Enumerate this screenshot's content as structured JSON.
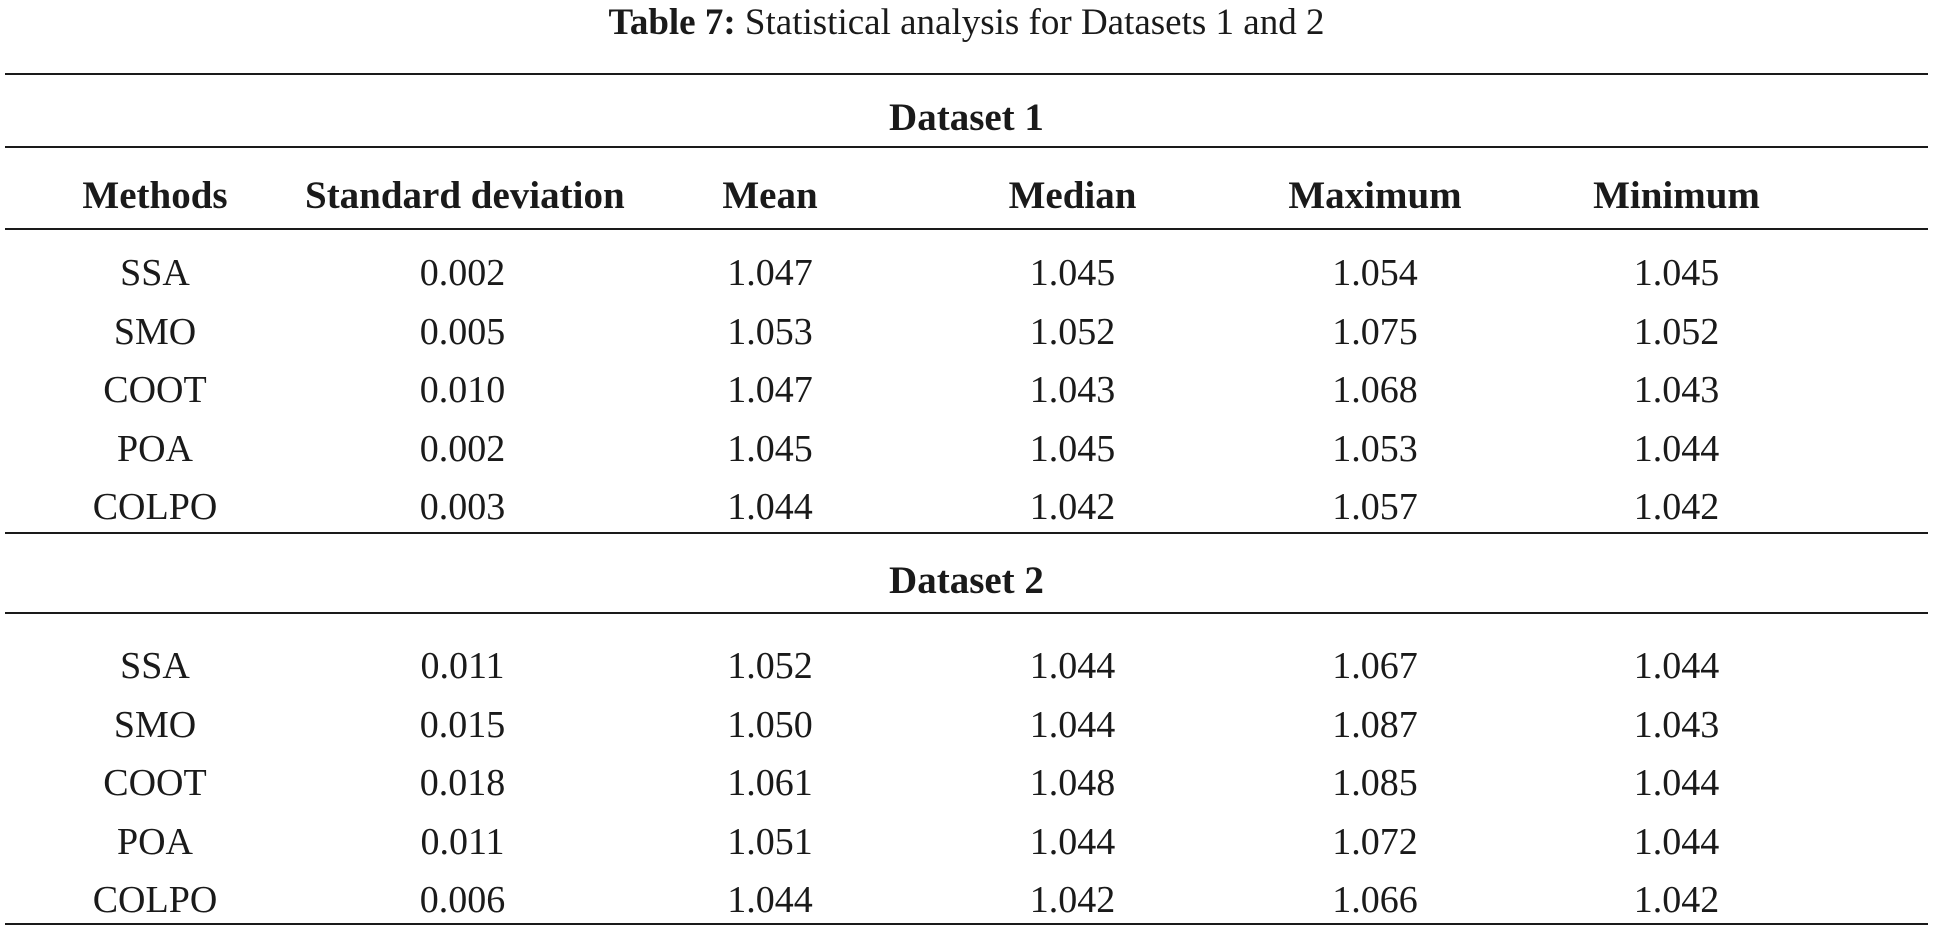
{
  "caption": {
    "label": "Table 7:",
    "text": " Statistical analysis for Datasets 1 and 2"
  },
  "table": {
    "columns": [
      "Methods",
      "Standard deviation",
      "Mean",
      "Median",
      "Maximum",
      "Minimum"
    ],
    "sections": [
      {
        "title": "Dataset 1",
        "rows": [
          [
            "SSA",
            "0.002",
            "1.047",
            "1.045",
            "1.054",
            "1.045"
          ],
          [
            "SMO",
            "0.005",
            "1.053",
            "1.052",
            "1.075",
            "1.052"
          ],
          [
            "COOT",
            "0.010",
            "1.047",
            "1.043",
            "1.068",
            "1.043"
          ],
          [
            "POA",
            "0.002",
            "1.045",
            "1.045",
            "1.053",
            "1.044"
          ],
          [
            "COLPO",
            "0.003",
            "1.044",
            "1.042",
            "1.057",
            "1.042"
          ]
        ]
      },
      {
        "title": "Dataset 2",
        "rows": [
          [
            "SSA",
            "0.011",
            "1.052",
            "1.044",
            "1.067",
            "1.044"
          ],
          [
            "SMO",
            "0.015",
            "1.050",
            "1.044",
            "1.087",
            "1.043"
          ],
          [
            "COOT",
            "0.018",
            "1.061",
            "1.048",
            "1.085",
            "1.044"
          ],
          [
            "POA",
            "0.011",
            "1.051",
            "1.044",
            "1.072",
            "1.044"
          ],
          [
            "COLPO",
            "0.006",
            "1.044",
            "1.042",
            "1.066",
            "1.042"
          ]
        ]
      }
    ]
  }
}
